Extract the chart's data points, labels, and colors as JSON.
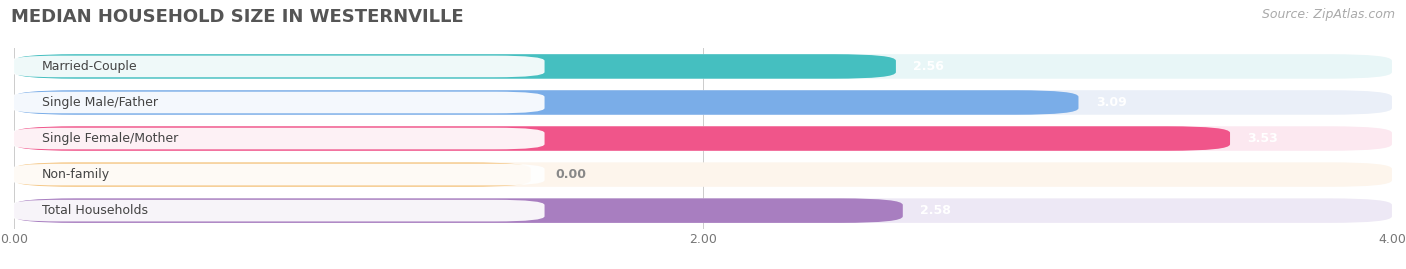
{
  "title": "MEDIAN HOUSEHOLD SIZE IN WESTERNVILLE",
  "source": "Source: ZipAtlas.com",
  "categories": [
    "Married-Couple",
    "Single Male/Father",
    "Single Female/Mother",
    "Non-family",
    "Total Households"
  ],
  "values": [
    2.56,
    3.09,
    3.53,
    0.0,
    2.58
  ],
  "bar_colors": [
    "#45bfc0",
    "#7aade8",
    "#f0558a",
    "#f5c98a",
    "#a87ec0"
  ],
  "bar_bg_colors": [
    "#e8f6f7",
    "#eaeff8",
    "#fce8f0",
    "#fdf5ec",
    "#ede8f5"
  ],
  "row_bg_color": "#f0f0f0",
  "xlim": [
    0,
    4.0
  ],
  "xticks": [
    0.0,
    2.0,
    4.0
  ],
  "xtick_labels": [
    "0.00",
    "2.00",
    "4.00"
  ],
  "value_label_color": "#ffffff",
  "value_label_color_zero": "#999999",
  "title_fontsize": 13,
  "source_fontsize": 9,
  "label_fontsize": 9,
  "tick_fontsize": 9,
  "background_color": "#ffffff"
}
